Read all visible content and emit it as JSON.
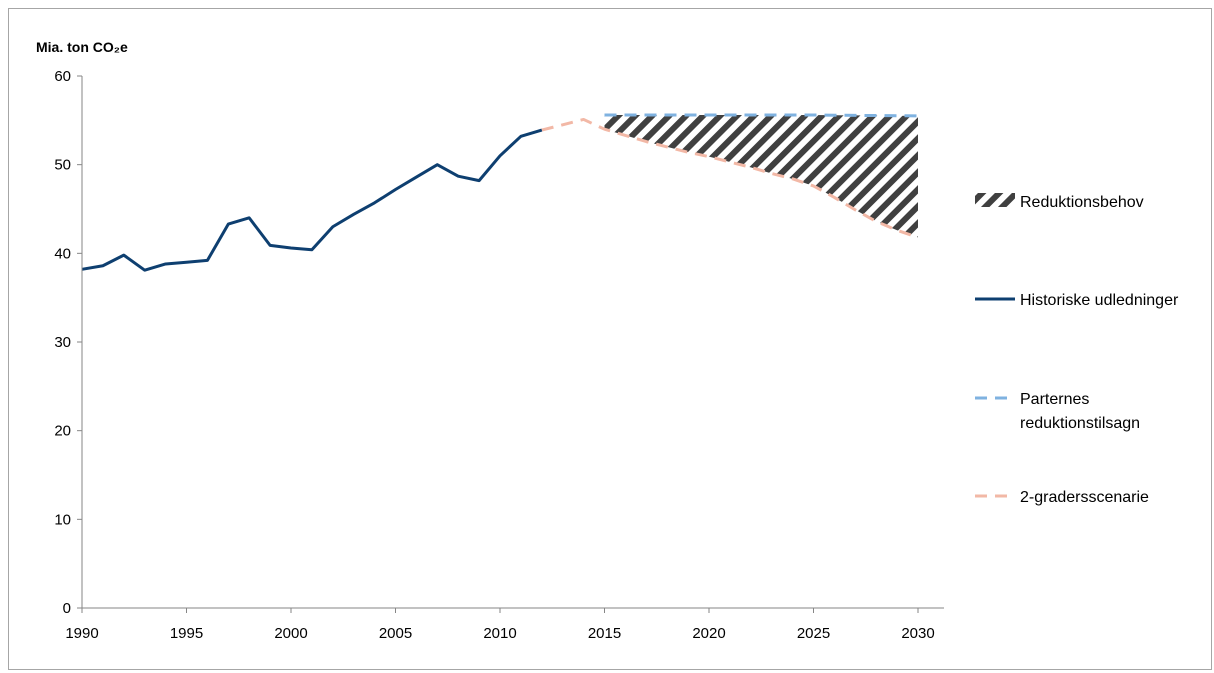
{
  "chart_data": {
    "type": "line",
    "ylabel": "Mia. ton CO₂e",
    "ylim": [
      0,
      60
    ],
    "yticks": [
      "0",
      "10",
      "20",
      "30",
      "40",
      "50",
      "60"
    ],
    "xlim": [
      1990,
      2030
    ],
    "xticks": [
      "1990",
      "1995",
      "2000",
      "2005",
      "2010",
      "2015",
      "2020",
      "2025",
      "2030"
    ],
    "grid": false,
    "legend_position": "right",
    "series": [
      {
        "name": "Historiske udledninger",
        "style": "solid",
        "color": "#0e3f70",
        "x": [
          1990,
          1991,
          1992,
          1993,
          1994,
          1995,
          1996,
          1997,
          1998,
          1999,
          2000,
          2001,
          2002,
          2003,
          2004,
          2005,
          2006,
          2007,
          2008,
          2009,
          2010,
          2011,
          2012
        ],
        "y": [
          38.2,
          38.6,
          39.8,
          38.1,
          38.8,
          39.0,
          39.2,
          43.3,
          44.0,
          40.9,
          40.6,
          40.4,
          43.0,
          44.4,
          45.7,
          47.2,
          48.6,
          50.0,
          48.7,
          48.2,
          51.0,
          53.2,
          53.9
        ]
      },
      {
        "name": "Parternes reduktionstilsagn",
        "style": "dashed",
        "color": "#7fb2e0",
        "x": [
          2015,
          2020,
          2025,
          2030
        ],
        "y": [
          55.6,
          55.6,
          55.6,
          55.5
        ]
      },
      {
        "name": "2-gradersscenarie",
        "style": "dashed",
        "color": "#f2b8a6",
        "x": [
          2012,
          2013,
          2014,
          2015,
          2016,
          2017,
          2018,
          2019,
          2020,
          2021,
          2022,
          2023,
          2024,
          2025,
          2026,
          2027,
          2028,
          2029,
          2030
        ],
        "y": [
          53.9,
          54.5,
          55.1,
          54.0,
          53.3,
          52.6,
          52.0,
          51.4,
          50.9,
          50.3,
          49.7,
          49.0,
          48.4,
          47.6,
          46.3,
          44.9,
          43.6,
          42.6,
          41.8
        ]
      }
    ],
    "area": {
      "name": "Reduktionsbehov",
      "pattern": "diagonal-hatch",
      "color": "#404040",
      "description_between": [
        "Parternes reduktionstilsagn",
        "2-gradersscenarie"
      ]
    }
  }
}
